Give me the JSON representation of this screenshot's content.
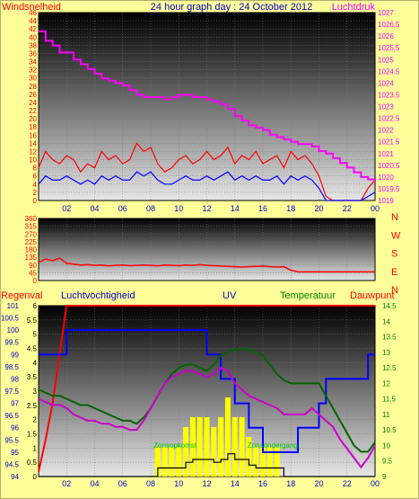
{
  "header": {
    "left_label": "Windsnelheid",
    "title": "24 hour graph day : 24 October 2012",
    "right_label": "Luchtdruk"
  },
  "colors": {
    "background": "#ffff99",
    "wind": "#ff0000",
    "gust": "#0000ff",
    "pressure": "#ff00ff",
    "direction": "#ff0000",
    "rain": "#ff0000",
    "humidity": "#0000ff",
    "uv": "#000000",
    "temperature": "#006400",
    "dewpoint": "#cc00cc",
    "solar": "#ffff00",
    "sunrise_text": "#00cc00",
    "axis_red": "#ff0000",
    "axis_magenta": "#ff00ff",
    "axis_green": "#008000"
  },
  "x_axis": {
    "ticks": [
      "02",
      "04",
      "06",
      "08",
      "10",
      "12",
      "14",
      "16",
      "18",
      "20",
      "22",
      "00"
    ]
  },
  "chart_data": [
    {
      "type": "line",
      "name": "wind-pressure",
      "y_left": {
        "label": "Windsnelheid",
        "ylim": [
          0,
          46
        ],
        "ticks": [
          "0",
          "2",
          "4",
          "6",
          "8",
          "10",
          "12",
          "14",
          "16",
          "18",
          "20",
          "22",
          "24",
          "26",
          "28",
          "30",
          "32",
          "34",
          "36",
          "38",
          "40",
          "42",
          "44",
          "46"
        ]
      },
      "y_right": {
        "label": "Luchtdruk",
        "ylim": [
          1019,
          1027
        ],
        "ticks": [
          "1019",
          "1019.5",
          "1020",
          "1020.5",
          "1021",
          "1021.5",
          "1022",
          "1022.5",
          "1023",
          "1023.5",
          "1024",
          "1024.5",
          "1025",
          "1025.5",
          "1026",
          "1026.5",
          "1027"
        ]
      },
      "x_hours": [
        0,
        0.5,
        1,
        1.5,
        2,
        2.5,
        3,
        3.5,
        4,
        4.5,
        5,
        5.5,
        6,
        6.5,
        7,
        7.5,
        8,
        8.5,
        9,
        9.5,
        10,
        10.5,
        11,
        11.5,
        12,
        12.5,
        13,
        13.5,
        14,
        14.5,
        15,
        15.5,
        16,
        16.5,
        17,
        17.5,
        18,
        18.5,
        19,
        19.5,
        20,
        20.5,
        21,
        21.5,
        22,
        22.5,
        23,
        23.5,
        24
      ],
      "series": [
        {
          "values": [
            8,
            12,
            10,
            9,
            11,
            10,
            7,
            9,
            8,
            12,
            10,
            11,
            9,
            10,
            14,
            12,
            13,
            9,
            7,
            8,
            10,
            11,
            9,
            10,
            12,
            10,
            11,
            13,
            9,
            11,
            10,
            12,
            9,
            10,
            11,
            8,
            12,
            10,
            11,
            9,
            6,
            1,
            0,
            0,
            0,
            0,
            0,
            3,
            5
          ]
        },
        {
          "values": [
            4,
            6,
            5,
            5,
            6,
            5,
            4,
            5,
            4,
            6,
            5,
            6,
            5,
            5,
            7,
            6,
            7,
            5,
            4,
            4,
            5,
            6,
            5,
            5,
            6,
            5,
            6,
            7,
            5,
            6,
            5,
            6,
            5,
            5,
            6,
            4,
            6,
            5,
            6,
            5,
            3,
            0,
            0,
            0,
            0,
            0,
            0,
            1,
            2
          ]
        },
        {
          "values": [
            1026.2,
            1025.8,
            1025.6,
            1025.3,
            1025.3,
            1025.0,
            1024.8,
            1024.6,
            1024.4,
            1024.2,
            1024.1,
            1024.0,
            1023.9,
            1023.7,
            1023.5,
            1023.4,
            1023.4,
            1023.4,
            1023.3,
            1023.4,
            1023.5,
            1023.5,
            1023.4,
            1023.4,
            1023.3,
            1023.2,
            1023.1,
            1022.9,
            1022.6,
            1022.4,
            1022.2,
            1022.1,
            1022.0,
            1021.8,
            1021.7,
            1021.6,
            1021.5,
            1021.4,
            1021.4,
            1021.3,
            1021.1,
            1021.0,
            1020.8,
            1020.6,
            1020.4,
            1020.2,
            1020.0,
            1019.9,
            1019.8
          ]
        }
      ]
    },
    {
      "type": "line",
      "name": "wind-direction",
      "y_left": {
        "ylim": [
          0,
          360
        ],
        "ticks": [
          "0",
          "45",
          "90",
          "135",
          "180",
          "225",
          "270",
          "315",
          "360"
        ]
      },
      "y_right": {
        "ticks": [
          "N",
          "W",
          "S",
          "E",
          "N"
        ]
      },
      "x_hours": [
        0,
        0.5,
        1,
        1.5,
        2,
        2.5,
        3,
        3.5,
        4,
        4.5,
        5,
        5.5,
        6,
        6.5,
        7,
        7.5,
        8,
        8.5,
        9,
        9.5,
        10,
        10.5,
        11,
        11.5,
        12,
        12.5,
        13,
        13.5,
        14,
        14.5,
        15,
        15.5,
        16,
        16.5,
        17,
        17.5,
        18,
        18.5,
        19,
        19.5,
        20,
        20.5,
        21,
        21.5,
        22,
        22.5,
        23,
        23.5,
        24
      ],
      "series": [
        {
          "values": [
            105,
            125,
            115,
            130,
            100,
            95,
            90,
            92,
            88,
            90,
            85,
            88,
            90,
            86,
            88,
            90,
            88,
            85,
            90,
            88,
            86,
            90,
            88,
            92,
            88,
            86,
            84,
            82,
            80,
            78,
            80,
            82,
            84,
            80,
            78,
            80,
            60,
            50,
            50,
            50,
            50,
            50,
            50,
            50,
            50,
            50,
            50,
            50,
            50
          ]
        }
      ]
    },
    {
      "type": "line",
      "name": "rain-humidity-uv-temp",
      "legend": [
        "Regenval",
        "Luchtvochtigheid",
        "UV",
        "Temperatuur",
        "Dauwpunt"
      ],
      "y_left_outer": {
        "label": "Regenval",
        "ylim": [
          94,
          101
        ],
        "ticks": [
          "94",
          "94.5",
          "95",
          "95.5",
          "96",
          "96.5",
          "97",
          "97.5",
          "98",
          "98.5",
          "99",
          "99.5",
          "100",
          "100.5",
          "101"
        ]
      },
      "y_left_inner": {
        "label": "UV",
        "ylim": [
          0,
          6
        ],
        "ticks": [
          "0",
          "0.5",
          "1",
          "1.5",
          "2",
          "2.5",
          "3",
          "3.5",
          "4",
          "4.5",
          "5",
          "5.5",
          "6"
        ]
      },
      "y_right": {
        "label": "Temperatuur",
        "ylim": [
          9,
          14.5
        ],
        "ticks": [
          "9",
          "9.5",
          "10",
          "10.5",
          "11",
          "11.5",
          "12",
          "12.5",
          "13",
          "13.5",
          "14",
          "14.5"
        ]
      },
      "annotations": [
        "Zonsopkomst",
        "Zonsondergang"
      ],
      "x_hours": [
        0,
        0.5,
        1,
        1.5,
        2,
        2.5,
        3,
        3.5,
        4,
        4.5,
        5,
        5.5,
        6,
        6.5,
        7,
        7.5,
        8,
        8.5,
        9,
        9.5,
        10,
        10.5,
        11,
        11.5,
        12,
        12.5,
        13,
        13.5,
        14,
        14.5,
        15,
        15.5,
        16,
        16.5,
        17,
        17.5,
        18,
        18.5,
        19,
        19.5,
        20,
        20.5,
        21,
        21.5,
        22,
        22.5,
        23,
        23.5,
        24
      ],
      "series": [
        {
          "values": [
            94.2,
            95.5,
            97,
            99,
            101,
            101,
            101,
            101,
            101,
            101,
            101,
            101,
            101,
            101,
            101,
            101,
            101,
            101,
            101,
            101,
            101,
            101,
            101,
            101,
            101,
            101,
            101,
            101,
            101,
            101,
            101,
            101,
            101,
            101,
            101,
            101,
            101,
            101,
            101,
            101,
            101,
            101,
            101,
            101,
            101,
            101,
            101,
            101,
            101
          ]
        },
        {
          "values": [
            99,
            99,
            99,
            99,
            100,
            100,
            100,
            100,
            100,
            100,
            100,
            100,
            100,
            100,
            100,
            100,
            100,
            100,
            100,
            100,
            100,
            100,
            100,
            100,
            99,
            99,
            98,
            98,
            97,
            97,
            96,
            96,
            95,
            95,
            95,
            95,
            95,
            96,
            96,
            96,
            97,
            98,
            98,
            98,
            98,
            98,
            98,
            99,
            99
          ]
        },
        {
          "values": [
            0,
            0,
            0,
            0,
            0,
            0,
            0,
            0,
            0,
            0,
            0,
            0,
            0,
            0,
            0,
            0,
            0,
            0.3,
            0.3,
            0.3,
            0.3,
            0.5,
            0.6,
            0.6,
            0.6,
            0.5,
            0.6,
            0.8,
            0.6,
            0.6,
            0.4,
            0.3,
            0.3,
            0.3,
            0.3,
            0,
            0,
            0,
            0,
            0,
            0,
            0,
            0,
            0,
            0,
            0,
            0,
            0,
            0
          ]
        },
        {
          "values": [
            11.8,
            11.7,
            11.6,
            11.6,
            11.5,
            11.4,
            11.3,
            11.3,
            11.2,
            11.1,
            11.0,
            10.9,
            10.8,
            10.8,
            10.7,
            10.9,
            11.2,
            11.6,
            12.0,
            12.3,
            12.5,
            12.6,
            12.6,
            12.5,
            12.4,
            12.6,
            12.9,
            13.0,
            13.1,
            13.1,
            13.1,
            13.0,
            12.9,
            12.6,
            12.3,
            12.1,
            12.0,
            12.0,
            12.0,
            12.0,
            12.0,
            11.6,
            11.2,
            10.8,
            10.4,
            10.0,
            9.8,
            9.8,
            10.1
          ]
        },
        {
          "values": [
            11.5,
            11.4,
            11.3,
            11.3,
            11.2,
            11.0,
            10.9,
            10.8,
            10.8,
            10.7,
            10.7,
            10.6,
            10.6,
            10.5,
            10.5,
            10.8,
            11.2,
            11.6,
            12.0,
            12.2,
            12.3,
            12.4,
            12.4,
            12.3,
            12.2,
            12.3,
            12.5,
            12.4,
            12.0,
            11.8,
            11.6,
            11.5,
            11.4,
            11.3,
            11.2,
            11.0,
            11.0,
            11.0,
            11.0,
            11.2,
            11.0,
            10.8,
            10.6,
            10.2,
            9.9,
            9.6,
            9.3,
            9.6,
            10.0
          ]
        }
      ]
    }
  ]
}
